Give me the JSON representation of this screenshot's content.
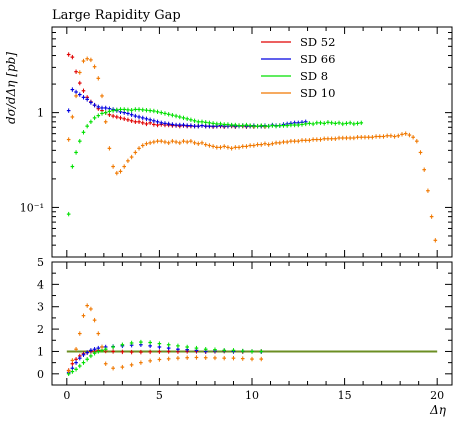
{
  "chart_data": [
    {
      "type": "scatter",
      "title": "Large Rapidity Gap",
      "ylabel": "dσ/dΔη [pb]",
      "xlabel": "",
      "yscale": "log",
      "xlim": [
        -0.8,
        20.8
      ],
      "ylim": [
        0.03,
        8.0
      ],
      "yticks": [
        {
          "value": 1,
          "label": "1"
        },
        {
          "value": 0.1,
          "label": "10⁻¹"
        }
      ],
      "legend_position": "top-right",
      "series": [
        {
          "name": "SD 52",
          "color": "#e00000",
          "x": [
            0.1,
            0.3,
            0.5,
            0.7,
            0.9,
            1.1,
            1.3,
            1.5,
            1.7,
            1.9,
            2.1,
            2.3,
            2.5,
            2.7,
            2.9,
            3.1,
            3.3,
            3.5,
            3.7,
            3.9,
            4.1,
            4.3,
            4.5,
            4.7,
            4.9,
            5.1,
            5.3,
            5.5,
            5.7,
            5.9,
            6.1,
            6.3,
            6.5,
            6.7,
            6.9,
            7.1,
            7.3,
            7.5,
            7.7,
            7.9,
            8.1,
            8.3,
            8.5,
            8.7,
            8.9,
            9.1,
            9.3,
            9.5,
            9.7,
            9.9,
            10.1,
            10.3,
            10.5,
            10.7
          ],
          "y": [
            4.1,
            3.85,
            2.7,
            2.05,
            1.7,
            1.45,
            1.3,
            1.2,
            1.1,
            1.05,
            1.0,
            0.95,
            0.92,
            0.9,
            0.88,
            0.86,
            0.84,
            0.82,
            0.8,
            0.8,
            0.78,
            0.76,
            0.78,
            0.75,
            0.74,
            0.75,
            0.74,
            0.74,
            0.73,
            0.73,
            0.72,
            0.73,
            0.72,
            0.72,
            0.72,
            0.72,
            0.73,
            0.72,
            0.72,
            0.71,
            0.72,
            0.72,
            0.71,
            0.72,
            0.72,
            0.71,
            0.73,
            0.72,
            0.71,
            0.72,
            0.71,
            0.72,
            0.72,
            0.71
          ]
        },
        {
          "name": "SD 66",
          "color": "#0000e0",
          "x": [
            0.1,
            0.3,
            0.5,
            0.7,
            0.9,
            1.1,
            1.3,
            1.5,
            1.7,
            1.9,
            2.1,
            2.3,
            2.5,
            2.7,
            2.9,
            3.1,
            3.3,
            3.5,
            3.7,
            3.9,
            4.1,
            4.3,
            4.5,
            4.7,
            4.9,
            5.1,
            5.3,
            5.5,
            5.7,
            5.9,
            6.1,
            6.3,
            6.5,
            6.7,
            6.9,
            7.1,
            7.3,
            7.5,
            7.7,
            7.9,
            8.1,
            8.3,
            8.5,
            8.7,
            8.9,
            9.1,
            9.3,
            9.5,
            9.7,
            9.9,
            10.1,
            10.3,
            10.5,
            10.7,
            10.9,
            11.1,
            11.3,
            11.5,
            11.7,
            11.9,
            12.1,
            12.3,
            12.5,
            12.7,
            12.9
          ],
          "y": [
            1.05,
            1.75,
            1.65,
            1.55,
            1.45,
            1.38,
            1.28,
            1.2,
            1.15,
            1.12,
            1.12,
            1.1,
            1.08,
            1.05,
            1.02,
            1.0,
            0.98,
            0.95,
            0.92,
            0.9,
            0.88,
            0.86,
            0.84,
            0.82,
            0.8,
            0.78,
            0.77,
            0.76,
            0.75,
            0.74,
            0.74,
            0.74,
            0.73,
            0.73,
            0.72,
            0.72,
            0.73,
            0.72,
            0.72,
            0.72,
            0.72,
            0.73,
            0.72,
            0.72,
            0.73,
            0.72,
            0.72,
            0.73,
            0.72,
            0.72,
            0.73,
            0.72,
            0.72,
            0.73,
            0.72,
            0.74,
            0.73,
            0.73,
            0.75,
            0.76,
            0.77,
            0.78,
            0.78,
            0.79,
            0.8
          ]
        },
        {
          "name": "SD 8",
          "color": "#00e000",
          "x": [
            0.1,
            0.3,
            0.5,
            0.7,
            0.9,
            1.1,
            1.3,
            1.5,
            1.7,
            1.9,
            2.1,
            2.3,
            2.5,
            2.7,
            2.9,
            3.1,
            3.3,
            3.5,
            3.7,
            3.9,
            4.1,
            4.3,
            4.5,
            4.7,
            4.9,
            5.1,
            5.3,
            5.5,
            5.7,
            5.9,
            6.1,
            6.3,
            6.5,
            6.7,
            6.9,
            7.1,
            7.3,
            7.5,
            7.7,
            7.9,
            8.1,
            8.3,
            8.5,
            8.7,
            8.9,
            9.1,
            9.3,
            9.5,
            9.7,
            9.9,
            10.1,
            10.3,
            10.5,
            10.7,
            10.9,
            11.1,
            11.3,
            11.5,
            11.7,
            11.9,
            12.1,
            12.3,
            12.5,
            12.7,
            12.9,
            13.1,
            13.3,
            13.5,
            13.7,
            13.9,
            14.1,
            14.3,
            14.5,
            14.7,
            14.9,
            15.1,
            15.3,
            15.5,
            15.7,
            15.9
          ],
          "y": [
            0.085,
            0.27,
            0.38,
            0.5,
            0.62,
            0.72,
            0.8,
            0.88,
            0.93,
            0.98,
            1.0,
            1.03,
            1.05,
            1.07,
            1.08,
            1.08,
            1.07,
            1.06,
            1.08,
            1.08,
            1.07,
            1.06,
            1.05,
            1.04,
            1.02,
            1.0,
            0.98,
            0.96,
            0.94,
            0.92,
            0.9,
            0.88,
            0.86,
            0.84,
            0.82,
            0.8,
            0.8,
            0.79,
            0.78,
            0.77,
            0.76,
            0.76,
            0.75,
            0.75,
            0.74,
            0.74,
            0.73,
            0.73,
            0.74,
            0.73,
            0.72,
            0.72,
            0.73,
            0.72,
            0.72,
            0.73,
            0.72,
            0.73,
            0.73,
            0.73,
            0.74,
            0.74,
            0.74,
            0.75,
            0.76,
            0.77,
            0.76,
            0.78,
            0.78,
            0.77,
            0.79,
            0.78,
            0.77,
            0.78,
            0.76,
            0.77,
            0.78,
            0.76,
            0.77,
            0.78
          ]
        },
        {
          "name": "SD 10",
          "color": "#f07800",
          "x": [
            0.1,
            0.3,
            0.5,
            0.7,
            0.9,
            1.1,
            1.3,
            1.5,
            1.7,
            1.9,
            2.1,
            2.3,
            2.5,
            2.7,
            2.9,
            3.1,
            3.3,
            3.5,
            3.7,
            3.9,
            4.1,
            4.3,
            4.5,
            4.7,
            4.9,
            5.1,
            5.3,
            5.5,
            5.7,
            5.9,
            6.1,
            6.3,
            6.5,
            6.7,
            6.9,
            7.1,
            7.3,
            7.5,
            7.7,
            7.9,
            8.1,
            8.3,
            8.5,
            8.7,
            8.9,
            9.1,
            9.3,
            9.5,
            9.7,
            9.9,
            10.1,
            10.3,
            10.5,
            10.7,
            10.9,
            11.1,
            11.3,
            11.5,
            11.7,
            11.9,
            12.1,
            12.3,
            12.5,
            12.7,
            12.9,
            13.1,
            13.3,
            13.5,
            13.7,
            13.9,
            14.1,
            14.3,
            14.5,
            14.7,
            14.9,
            15.1,
            15.3,
            15.5,
            15.7,
            15.9,
            16.1,
            16.3,
            16.5,
            16.7,
            16.9,
            17.1,
            17.3,
            17.5,
            17.7,
            17.9,
            18.1,
            18.3,
            18.5,
            18.7,
            18.9,
            19.1,
            19.3,
            19.5,
            19.7,
            19.9
          ],
          "y": [
            0.52,
            0.9,
            1.5,
            2.65,
            3.5,
            3.7,
            3.6,
            3.05,
            2.3,
            1.5,
            0.8,
            0.42,
            0.27,
            0.23,
            0.24,
            0.27,
            0.31,
            0.34,
            0.38,
            0.42,
            0.45,
            0.47,
            0.48,
            0.49,
            0.5,
            0.5,
            0.49,
            0.48,
            0.5,
            0.49,
            0.48,
            0.5,
            0.49,
            0.5,
            0.48,
            0.47,
            0.48,
            0.46,
            0.45,
            0.44,
            0.43,
            0.43,
            0.44,
            0.43,
            0.42,
            0.43,
            0.43,
            0.44,
            0.44,
            0.45,
            0.45,
            0.46,
            0.46,
            0.47,
            0.46,
            0.47,
            0.48,
            0.48,
            0.49,
            0.49,
            0.5,
            0.5,
            0.5,
            0.51,
            0.51,
            0.51,
            0.52,
            0.52,
            0.52,
            0.53,
            0.53,
            0.53,
            0.53,
            0.54,
            0.54,
            0.54,
            0.54,
            0.54,
            0.55,
            0.55,
            0.55,
            0.55,
            0.55,
            0.56,
            0.56,
            0.56,
            0.57,
            0.57,
            0.56,
            0.57,
            0.59,
            0.6,
            0.58,
            0.55,
            0.5,
            0.38,
            0.25,
            0.15,
            0.08,
            0.045
          ]
        }
      ]
    },
    {
      "type": "scatter",
      "title": "",
      "xlabel": "Δη",
      "ylabel": "",
      "xlim": [
        -0.8,
        20.8
      ],
      "ylim": [
        -0.5,
        5.0
      ],
      "xticks": [
        0,
        5,
        10,
        15,
        20
      ],
      "yticks": [
        0,
        1,
        2,
        3,
        4,
        5
      ],
      "reference_line": 1,
      "reference_color": "#6b8e23",
      "series": [
        {
          "name": "SD 52",
          "color": "#e00000",
          "x": [
            0.1,
            0.3,
            0.5,
            0.7,
            0.9,
            1.1,
            1.3,
            1.5,
            1.7,
            1.9,
            2.1,
            2.5,
            3.0,
            3.5,
            4.0,
            4.5,
            5.0,
            5.5,
            6.0,
            6.5,
            7.0,
            7.5,
            8.0,
            8.5,
            9.0,
            9.5,
            10.0,
            10.5
          ],
          "y": [
            0.15,
            0.45,
            0.65,
            0.8,
            0.9,
            0.95,
            1.0,
            1.02,
            1.05,
            1.05,
            1.02,
            1.0,
            0.98,
            0.97,
            0.97,
            0.98,
            0.99,
            1.0,
            0.99,
            1.0,
            1.0,
            0.99,
            1.0,
            1.01,
            1.0,
            0.99,
            1.0,
            1.0
          ]
        },
        {
          "name": "SD 66",
          "color": "#0000e0",
          "x": [
            0.1,
            0.3,
            0.5,
            0.7,
            0.9,
            1.1,
            1.3,
            1.5,
            1.7,
            1.9,
            2.1,
            2.5,
            3.0,
            3.5,
            4.0,
            4.5,
            5.0,
            5.5,
            6.0,
            6.5,
            7.0,
            7.5,
            8.0,
            8.5,
            9.0,
            9.5,
            10.0,
            10.5
          ],
          "y": [
            0.05,
            0.25,
            0.5,
            0.7,
            0.85,
            0.95,
            1.05,
            1.1,
            1.15,
            1.2,
            1.2,
            1.22,
            1.25,
            1.28,
            1.3,
            1.25,
            1.2,
            1.15,
            1.1,
            1.08,
            1.05,
            1.0,
            1.02,
            1.03,
            1.0,
            1.01,
            1.0,
            0.99
          ]
        },
        {
          "name": "SD 8",
          "color": "#00e000",
          "x": [
            0.1,
            0.3,
            0.5,
            0.7,
            0.9,
            1.1,
            1.3,
            1.5,
            1.7,
            1.9,
            2.1,
            2.5,
            3.0,
            3.5,
            4.0,
            4.5,
            5.0,
            5.5,
            6.0,
            6.5,
            7.0,
            7.5,
            8.0,
            8.5,
            9.0,
            9.5,
            10.0,
            10.5
          ],
          "y": [
            0.0,
            0.1,
            0.2,
            0.35,
            0.5,
            0.65,
            0.8,
            0.92,
            1.0,
            1.05,
            1.1,
            1.2,
            1.3,
            1.38,
            1.42,
            1.4,
            1.35,
            1.3,
            1.25,
            1.2,
            1.15,
            1.1,
            1.08,
            1.05,
            1.05,
            1.02,
            1.0,
            1.0
          ]
        },
        {
          "name": "SD 10",
          "color": "#f07800",
          "x": [
            0.1,
            0.3,
            0.5,
            0.7,
            0.9,
            1.1,
            1.3,
            1.5,
            1.7,
            1.9,
            2.1,
            2.5,
            3.0,
            3.5,
            4.0,
            4.5,
            5.0,
            5.5,
            6.0,
            6.5,
            7.0,
            7.5,
            8.0,
            8.5,
            9.0,
            9.5,
            10.0,
            10.5
          ],
          "y": [
            0.13,
            0.6,
            1.1,
            1.8,
            2.6,
            3.05,
            2.9,
            2.4,
            1.8,
            1.2,
            0.45,
            0.25,
            0.3,
            0.4,
            0.5,
            0.58,
            0.64,
            0.67,
            0.7,
            0.72,
            0.73,
            0.72,
            0.71,
            0.7,
            0.7,
            0.68,
            0.66,
            0.66
          ]
        }
      ]
    }
  ]
}
